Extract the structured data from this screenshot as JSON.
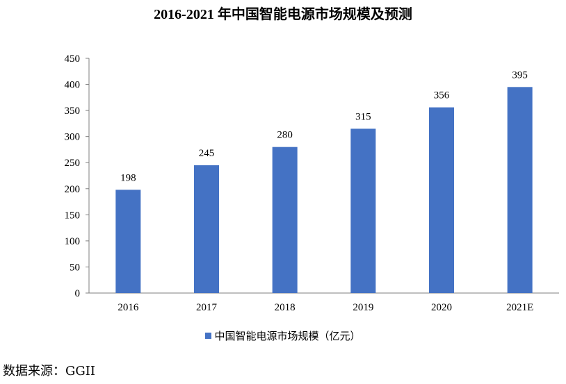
{
  "colors": {
    "bar": "#4472C4",
    "axis": "#7f7f7f"
  },
  "chart_data": {
    "type": "bar",
    "title": "2016-2021 年中国智能电源市场规模及预测",
    "categories": [
      "2016",
      "2017",
      "2018",
      "2019",
      "2020",
      "2021E"
    ],
    "series": [
      {
        "name": "中国智能电源市场规模（亿元）",
        "values": [
          198,
          245,
          280,
          315,
          356,
          395
        ]
      }
    ],
    "ylim": [
      0,
      450
    ],
    "yticks": [
      0,
      50,
      100,
      150,
      200,
      250,
      300,
      350,
      400,
      450
    ],
    "grid": false,
    "legend": "bottom",
    "data_labels": true
  },
  "source_note": "数据来源：GGII"
}
